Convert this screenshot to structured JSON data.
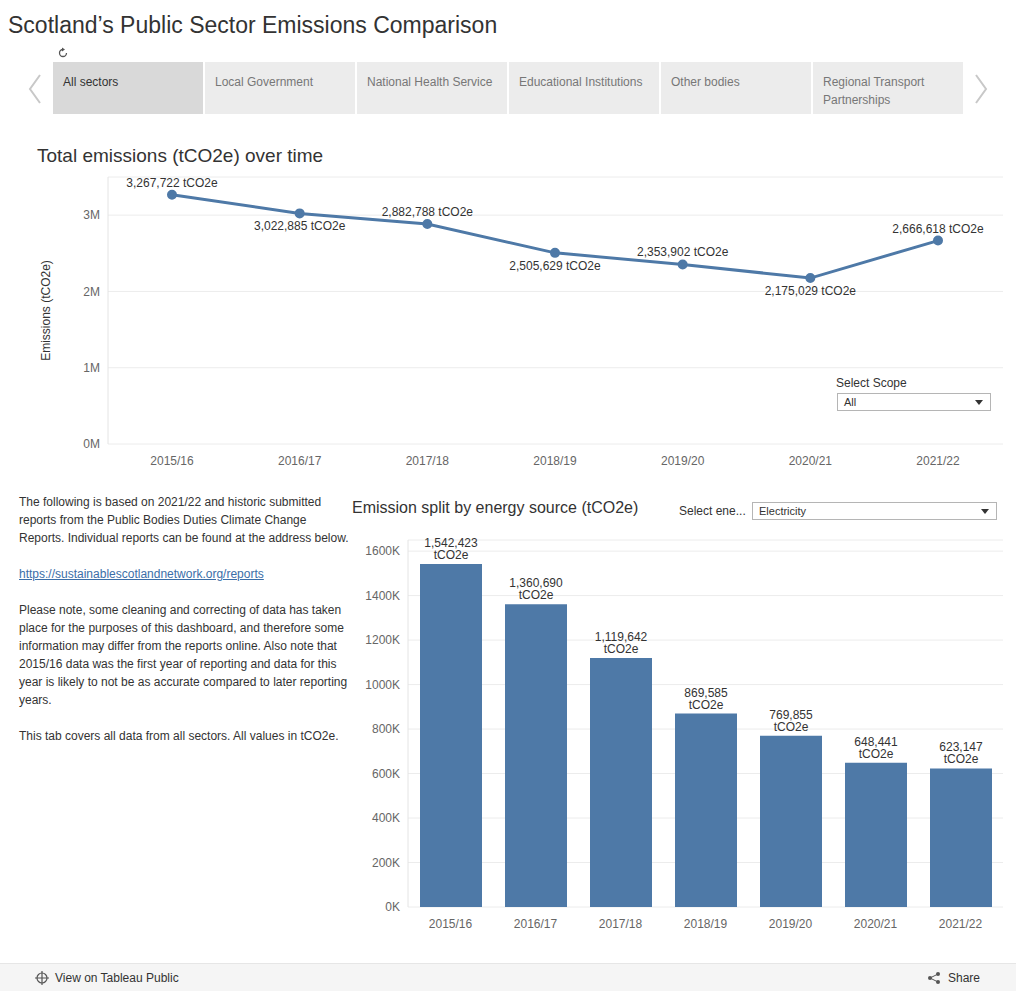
{
  "title": "Scotland’s Public Sector Emissions Comparison",
  "tabs": [
    {
      "label": "All sectors",
      "active": true
    },
    {
      "label": "Local Government",
      "active": false
    },
    {
      "label": "National Health Service",
      "active": false
    },
    {
      "label": "Educational Institutions",
      "active": false
    },
    {
      "label": "Other bodies",
      "active": false
    },
    {
      "label": "Regional Transport Partnerships",
      "active": false
    }
  ],
  "controls": [
    {
      "label": "Select Scope",
      "value": "All"
    },
    {
      "label": "Select ene...",
      "value": "Electricity"
    }
  ],
  "notes": {
    "intro": "The following is based on 2021/22 and historic submitted reports from the Public Bodies Duties Climate Change Reports. Individual reports can be found at the address below.",
    "link": "https://sustainablescotlandnetwork.org/reports",
    "caveat": "Please note, some cleaning and correcting of data has taken place for the purposes of this dashboard, and therefore some information may differ from the reports online. Also note that 2015/16 data was the first year of reporting and data for this year is likely to not be as accurate compared to later reporting years.",
    "scope": "This tab covers all data from all sectors. All values in tCO2e."
  },
  "footer": {
    "left": "View on Tableau Public",
    "right": "Share"
  },
  "chart_data": [
    {
      "type": "line",
      "title": "Total emissions (tCO2e) over time",
      "y_label": "Emissions (tCO2e)",
      "categories": [
        "2015/16",
        "2016/17",
        "2017/18",
        "2018/19",
        "2019/20",
        "2020/21",
        "2021/22"
      ],
      "values": [
        3267722,
        3022885,
        2882788,
        2505629,
        2353902,
        2175029,
        2666618
      ],
      "value_labels": [
        "3,267,722 tCO2e",
        "3,022,885 tCO2e",
        "2,882,788 tCO2e",
        "2,505,629 tCO2e",
        "2,353,902 tCO2e",
        "2,175,029 tCO2e",
        "2,666,618 tCO2e"
      ],
      "color": "#4e79a7",
      "marker": "circle",
      "ylim": [
        0,
        3500000
      ],
      "yticks": [
        {
          "value": 0,
          "label": "0M"
        },
        {
          "value": 1000000,
          "label": "1M"
        },
        {
          "value": 2000000,
          "label": "2M"
        },
        {
          "value": 3000000,
          "label": "3M"
        }
      ],
      "grid": true,
      "data_labels": true
    },
    {
      "type": "bar",
      "title": "Emission split by energy source (tCO2e)",
      "categories": [
        "2015/16",
        "2016/17",
        "2017/18",
        "2018/19",
        "2019/20",
        "2020/21",
        "2021/22"
      ],
      "values": [
        1542423,
        1360690,
        1119642,
        869585,
        769855,
        648441,
        623147
      ],
      "value_labels": [
        "1,542,423 tCO2e",
        "1,360,690 tCO2e",
        "1,119,642 tCO2e",
        "869,585 tCO2e",
        "769,855 tCO2e",
        "648,441 tCO2e",
        "623,147 tCO2e"
      ],
      "color": "#4e79a7",
      "ylim": [
        0,
        1650000
      ],
      "yticks": [
        {
          "value": 0,
          "label": "0K"
        },
        {
          "value": 200000,
          "label": "200K"
        },
        {
          "value": 400000,
          "label": "400K"
        },
        {
          "value": 600000,
          "label": "600K"
        },
        {
          "value": 800000,
          "label": "800K"
        },
        {
          "value": 1000000,
          "label": "1000K"
        },
        {
          "value": 1200000,
          "label": "1200K"
        },
        {
          "value": 1400000,
          "label": "1400K"
        },
        {
          "value": 1600000,
          "label": "1600K"
        }
      ],
      "grid": true,
      "data_labels": true
    }
  ]
}
